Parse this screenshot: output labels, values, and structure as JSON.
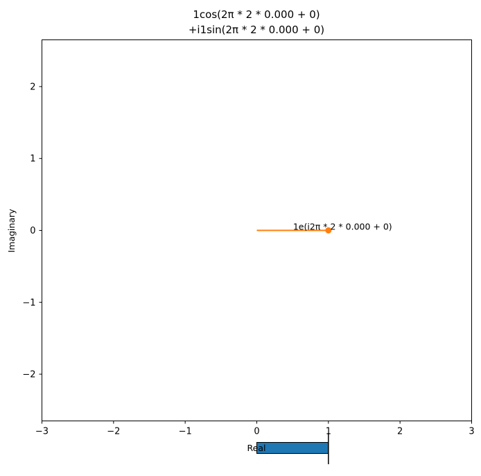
{
  "chart_data": {
    "type": "line",
    "title_lines": [
      "1cos(2π * 2 * 0.000 + 0)",
      "+i1sin(2π * 2 * 0.000 + 0)"
    ],
    "xlabel": "Real",
    "ylabel": "Imaginary",
    "xlim": [
      -3,
      3
    ],
    "ylim": [
      -2.65,
      2.65
    ],
    "xticks": [
      -3,
      -2,
      -1,
      0,
      1,
      2,
      3
    ],
    "yticks": [
      -2,
      -1,
      0,
      1,
      2
    ],
    "xtick_labels": [
      "−3",
      "−2",
      "−1",
      "0",
      "1",
      "2",
      "3"
    ],
    "ytick_labels": [
      "−2",
      "−1",
      "0",
      "1",
      "2"
    ],
    "grid": false,
    "series": [
      {
        "x": [
          0,
          1
        ],
        "y": [
          0,
          0
        ],
        "color": "#ff7f0e"
      }
    ],
    "point": {
      "x": 1,
      "y": 0,
      "color": "#ff7f0e"
    },
    "annotation": {
      "text": "1e(i2π * 2 * 0.000 + 0)",
      "x": 1,
      "y": 0
    },
    "bar": {
      "from": 0,
      "to": 1,
      "color": "#1f77b4",
      "edge_color": "#000000"
    },
    "marker_line": {
      "x": 1,
      "color": "#000000"
    }
  }
}
